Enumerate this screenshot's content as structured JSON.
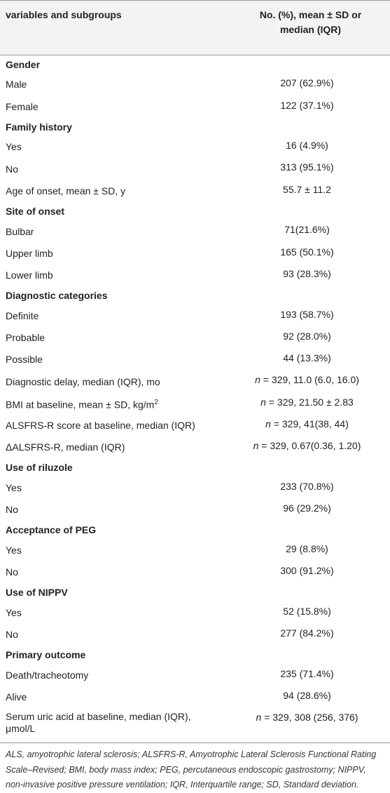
{
  "table": {
    "header": [
      "variables and subgroups",
      "No. (%), mean ± SD or median (IQR)"
    ],
    "rows": [
      {
        "group": "Gender"
      },
      {
        "label": "Male",
        "value": "207 (62.9%)"
      },
      {
        "label": "Female",
        "value": "122 (37.1%)"
      },
      {
        "group": "Family history"
      },
      {
        "label": "Yes",
        "value": "16 (4.9%)"
      },
      {
        "label": "No",
        "value": "313 (95.1%)"
      },
      {
        "label": "Age of onset, mean ± SD, y",
        "value": "55.7 ± 11.2"
      },
      {
        "group": "Site of onset"
      },
      {
        "label": "Bulbar",
        "value": "71(21.6%)"
      },
      {
        "label": "Upper limb",
        "value": "165 (50.1%)"
      },
      {
        "label": "Lower limb",
        "value": "93 (28.3%)"
      },
      {
        "group": "Diagnostic categories"
      },
      {
        "label": "Definite",
        "value": "193 (58.7%)"
      },
      {
        "label": "Probable",
        "value": "92 (28.0%)"
      },
      {
        "label": "Possible",
        "value": "44 (13.3%)"
      },
      {
        "label": "Diagnostic delay, median (IQR), mo",
        "value": {
          "em": "n",
          "text": " = 329, 11.0 (6.0, 16.0)"
        }
      },
      {
        "label": {
          "text": "BMI at baseline, mean ± SD, kg/m",
          "sup": "2"
        },
        "value": {
          "em": "n",
          "text": " = 329, 21.50 ± 2.83"
        }
      },
      {
        "label": "ALSFRS-R score at baseline, median (IQR)",
        "value": {
          "em": "n",
          "text": " = 329, 41(38, 44)"
        }
      },
      {
        "label": "ΔALSFRS-R, median (IQR)",
        "value": {
          "em": "n",
          "text": " = 329, 0.67(0.36, 1.20)"
        }
      },
      {
        "group": "Use of riluzole"
      },
      {
        "label": "Yes",
        "value": "233 (70.8%)"
      },
      {
        "label": "No",
        "value": "96 (29.2%)"
      },
      {
        "group": "Acceptance of PEG"
      },
      {
        "label": "Yes",
        "value": "29 (8.8%)"
      },
      {
        "label": "No",
        "value": "300 (91.2%)"
      },
      {
        "group": "Use of NIPPV"
      },
      {
        "label": "Yes",
        "value": "52 (15.8%)"
      },
      {
        "label": "No",
        "value": "277 (84.2%)"
      },
      {
        "group": "Primary outcome"
      },
      {
        "label": "Death/tracheotomy",
        "value": "235 (71.4%)"
      },
      {
        "label": "Alive",
        "value": "94 (28.6%)"
      },
      {
        "label": "Serum uric acid at baseline, median (IQR), μmol/L",
        "value": {
          "em": "n",
          "text": " = 329, 308 (256, 376)"
        }
      }
    ]
  },
  "footnote": "ALS, amyotrophic lateral sclerosis; ALSFRS-R, Amyotrophic Lateral Sclerosis Functional Rating Scale–Revised; BMI, body mass index; PEG, percutaneous endoscopic gastrostomy; NIPPV, non-invasive positive pressure ventilation; IQR, Interquartile range; SD, Standard deviation."
}
